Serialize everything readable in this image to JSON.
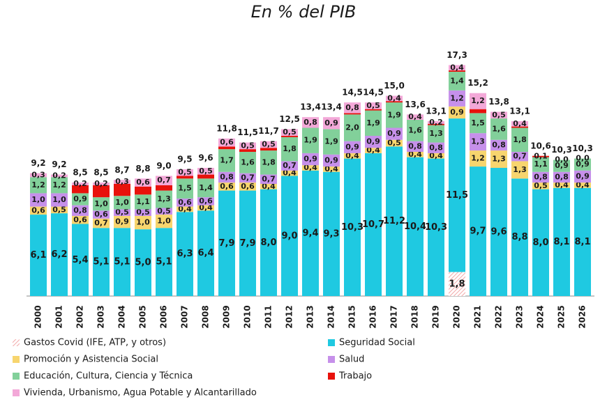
{
  "chart_data": {
    "type": "stacked_bar",
    "title": "En % del PIB",
    "categories": [
      "2000",
      "2001",
      "2002",
      "2003",
      "2004",
      "2005",
      "2006",
      "2007",
      "2008",
      "2009",
      "2010",
      "2011",
      "2012",
      "2013",
      "2014",
      "2015",
      "2016",
      "2017",
      "2018",
      "2019",
      "2020",
      "2021",
      "2022",
      "2023",
      "2024",
      "2025",
      "2026"
    ],
    "ylim": [
      0,
      18
    ],
    "series": [
      {
        "name": "Gastos Covid (IFE, ATP, y otros)",
        "color": "#f2a8a8",
        "pattern": "hatch",
        "values": [
          null,
          null,
          null,
          null,
          null,
          null,
          null,
          null,
          null,
          null,
          null,
          null,
          null,
          null,
          null,
          null,
          null,
          null,
          null,
          null,
          1.8,
          null,
          null,
          null,
          null,
          null,
          null
        ],
        "value_labels": [
          null,
          null,
          null,
          null,
          null,
          null,
          null,
          null,
          null,
          null,
          null,
          null,
          null,
          null,
          null,
          null,
          null,
          null,
          null,
          null,
          "1,8",
          null,
          null,
          null,
          null,
          null,
          null
        ]
      },
      {
        "name": "Seguridad Social",
        "color": "#1fc9e1",
        "values": [
          6.1,
          6.2,
          5.4,
          5.1,
          5.1,
          5.0,
          5.1,
          6.3,
          6.4,
          7.9,
          7.9,
          8.0,
          9.0,
          9.4,
          9.3,
          10.3,
          10.7,
          11.2,
          10.4,
          10.3,
          11.5,
          9.7,
          9.6,
          8.8,
          8.0,
          8.1,
          8.1
        ],
        "value_labels": [
          "6,1",
          "6,2",
          "5,4",
          "5,1",
          "5,1",
          "5,0",
          "5,1",
          "6,3",
          "6,4",
          "7,9",
          "7,9",
          "8,0",
          "9,0",
          "9,4",
          "9,3",
          "10,3",
          "10,7",
          "11,2",
          "10,4",
          "10,3",
          "11,5",
          "9,7",
          "9,6",
          "8,8",
          "8,0",
          "8,1",
          "8,1"
        ]
      },
      {
        "name": "Promoción y Asistencia Social",
        "color": "#f7d56e",
        "values": [
          0.6,
          0.5,
          0.6,
          0.7,
          0.9,
          1.0,
          1.0,
          0.4,
          0.4,
          0.6,
          0.6,
          0.4,
          0.4,
          0.4,
          0.4,
          0.4,
          0.4,
          0.5,
          0.4,
          0.4,
          0.9,
          1.2,
          1.3,
          1.3,
          0.5,
          0.4,
          0.4
        ],
        "value_labels": [
          "0,6",
          "0,5",
          "0,6",
          "0,7",
          "0,9",
          "1,0",
          "1,0",
          "0,4",
          "0,4",
          "0,6",
          "0,6",
          "0,4",
          "0,4",
          "0,4",
          "0,4",
          "0,4",
          "0,4",
          "0,5",
          "0,4",
          "0,4",
          "0,9",
          "1,2",
          "1,3",
          "1,3",
          "0,5",
          "0,4",
          "0,4"
        ]
      },
      {
        "name": "Salud",
        "color": "#c690ea",
        "values": [
          1.0,
          1.0,
          0.8,
          0.6,
          0.5,
          0.5,
          0.5,
          0.6,
          0.6,
          0.8,
          0.7,
          0.7,
          0.7,
          0.9,
          0.9,
          0.9,
          0.9,
          0.9,
          0.8,
          0.8,
          1.2,
          1.3,
          0.8,
          0.7,
          0.8,
          0.8,
          0.9
        ],
        "value_labels": [
          "1,0",
          "1,0",
          "0,8",
          "0,6",
          "0,5",
          "0,5",
          "0,5",
          "0,6",
          "0,6",
          "0,8",
          "0,7",
          "0,7",
          "0,7",
          "0,9",
          "0,9",
          "0,9",
          "0,9",
          "0,9",
          "0,8",
          "0,8",
          "1,2",
          "1,3",
          "0,8",
          "0,7",
          "0,8",
          "0,8",
          "0,9"
        ]
      },
      {
        "name": "Educación, Cultura, Ciencia y Técnica",
        "color": "#82d09a",
        "values": [
          1.2,
          1.2,
          0.9,
          1.0,
          1.0,
          1.1,
          1.3,
          1.5,
          1.4,
          1.7,
          1.6,
          1.8,
          1.8,
          1.9,
          1.9,
          2.0,
          1.9,
          1.9,
          1.6,
          1.3,
          1.4,
          1.5,
          1.6,
          1.8,
          1.1,
          0.9,
          0.9
        ],
        "value_labels": [
          "1,2",
          "1,2",
          "0,9",
          "1,0",
          "1,0",
          "1,1",
          "1,3",
          "1,5",
          "1,4",
          "1,7",
          "1,6",
          "1,8",
          "1,8",
          "1,9",
          "1,9",
          "2,0",
          "1,9",
          "1,9",
          "1,6",
          "1,3",
          "1,4",
          "1,5",
          "1,6",
          "1,8",
          "1,1",
          "0,9",
          "0,9"
        ]
      },
      {
        "name": "Trabajo",
        "color": "#e8120c",
        "values": [
          null,
          null,
          0.6,
          0.9,
          0.9,
          0.6,
          0.4,
          0.2,
          0.3,
          0.2,
          0.2,
          0.2,
          0.1,
          null,
          null,
          0.1,
          0.1,
          0.1,
          null,
          0.1,
          0.1,
          0.3,
          null,
          0.1,
          0.1,
          0.0,
          0.0
        ],
        "value_labels": [
          null,
          null,
          null,
          null,
          null,
          null,
          null,
          null,
          null,
          null,
          null,
          null,
          null,
          null,
          null,
          null,
          null,
          null,
          null,
          null,
          null,
          null,
          null,
          null,
          "0,1",
          "0,0",
          "0,0"
        ]
      },
      {
        "name": "Vivienda, Urbanismo, Agua Potable y Alcantarillado",
        "color": "#f3a8d8",
        "values": [
          0.3,
          0.2,
          0.2,
          0.2,
          0.3,
          0.6,
          0.7,
          0.5,
          0.5,
          0.6,
          0.5,
          0.5,
          0.5,
          0.8,
          0.9,
          0.8,
          0.5,
          0.4,
          0.4,
          0.2,
          0.4,
          1.2,
          0.5,
          0.4,
          null,
          null,
          null
        ],
        "value_labels": [
          "0,3",
          "0,2",
          "0,2",
          "0,2",
          "0,3",
          "0,6",
          "0,7",
          "0,5",
          "0,5",
          "0,6",
          "0,5",
          "0,5",
          "0,5",
          "0,8",
          "0,9",
          "0,8",
          "0,5",
          "0,4",
          "0,4",
          "0,2",
          "0,4",
          "1,2",
          "0,5",
          "0,4",
          null,
          null,
          null
        ]
      }
    ],
    "total_labels": [
      "9,2",
      "9,2",
      "8,5",
      "8,5",
      "8,7",
      "8,8",
      "9,0",
      "9,5",
      "9,6",
      "11,8",
      "11,5",
      "11,7",
      "12,5",
      "13,4",
      "13,4",
      "14,5",
      "14,5",
      "15,0",
      "13,6",
      "13,1",
      "17,3",
      "15,2",
      "13,8",
      "13,1",
      "10,6",
      "10,3",
      "10,3"
    ],
    "legend": "bottom"
  }
}
